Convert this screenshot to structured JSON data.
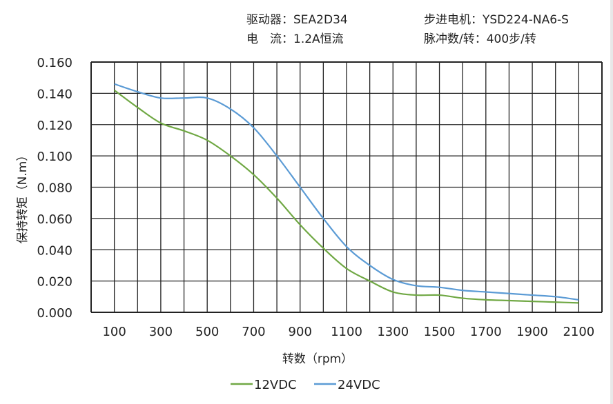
{
  "header": {
    "driver": "驱动器：SEA2D34",
    "motor": "步进电机：YSD224-NA6-S",
    "current": "电　流：1.2A恒流",
    "pulses": "脉冲数/转：400步/转"
  },
  "chart_data": {
    "type": "line",
    "xlabel": "转数（rpm）",
    "ylabel": "保持转矩（N.m）",
    "xlim": [
      0,
      2200
    ],
    "ylim": [
      0,
      0.16
    ],
    "grid": true,
    "legend_position": "bottom",
    "x_ticks": [
      "100",
      "300",
      "500",
      "700",
      "900",
      "1100",
      "1300",
      "1500",
      "1700",
      "1900",
      "2100"
    ],
    "y_ticks": [
      "0.000",
      "0.020",
      "0.040",
      "0.060",
      "0.080",
      "0.100",
      "0.120",
      "0.140",
      "0.160"
    ],
    "x": [
      100,
      200,
      300,
      400,
      500,
      600,
      700,
      800,
      900,
      1000,
      1100,
      1200,
      1300,
      1400,
      1500,
      1600,
      1700,
      1800,
      1900,
      2000,
      2100
    ],
    "series": [
      {
        "name": "12VDC",
        "color": "#70a844",
        "values": [
          0.142,
          0.131,
          0.121,
          0.116,
          0.11,
          0.1,
          0.088,
          0.073,
          0.056,
          0.041,
          0.028,
          0.02,
          0.013,
          0.011,
          0.011,
          0.009,
          0.008,
          0.0075,
          0.007,
          0.0065,
          0.006
        ]
      },
      {
        "name": "24VDC",
        "color": "#5b9bd5",
        "values": [
          0.146,
          0.141,
          0.137,
          0.137,
          0.137,
          0.13,
          0.118,
          0.1,
          0.08,
          0.06,
          0.042,
          0.03,
          0.021,
          0.017,
          0.016,
          0.014,
          0.013,
          0.012,
          0.011,
          0.01,
          0.008
        ]
      }
    ]
  }
}
